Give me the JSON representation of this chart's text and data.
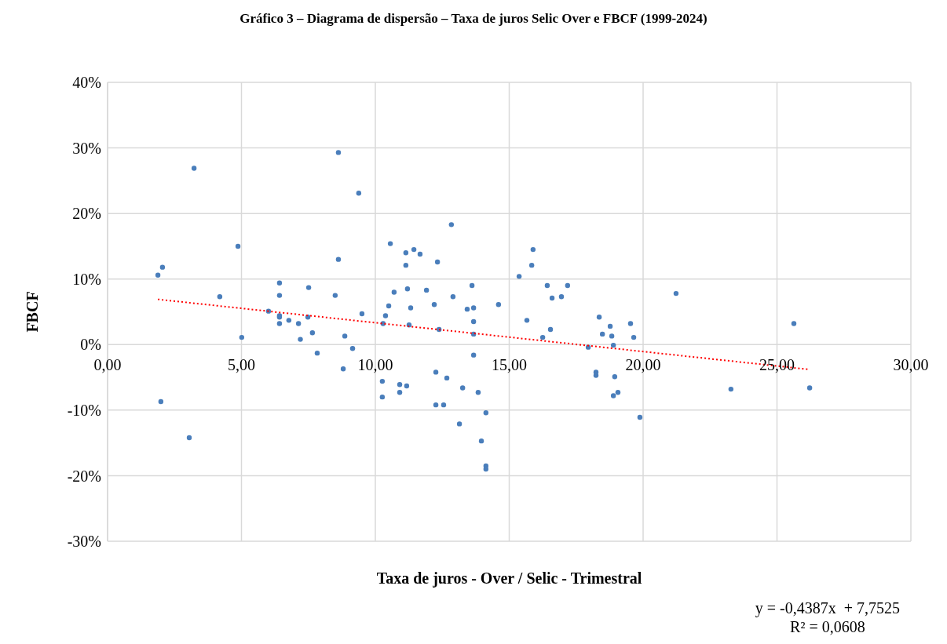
{
  "chart_data": {
    "type": "scatter",
    "title": "Gráfico 3 – Diagrama de dispersão – Taxa de juros Selic Over e FBCF (1999-2024)",
    "xlabel": "Taxa de juros - Over / Selic - Trimestral",
    "ylabel": "FBCF",
    "xlim": [
      0,
      30
    ],
    "xticks": [
      {
        "value": 0,
        "label": "0,00"
      },
      {
        "value": 5,
        "label": "5,00"
      },
      {
        "value": 10,
        "label": "10,00"
      },
      {
        "value": 15,
        "label": "15,00"
      },
      {
        "value": 20,
        "label": "20,00"
      },
      {
        "value": 25,
        "label": "25,00"
      },
      {
        "value": 30,
        "label": "30,00"
      }
    ],
    "ylim": [
      -30,
      40
    ],
    "yticks": [
      {
        "value": -30,
        "label": "-30%"
      },
      {
        "value": -20,
        "label": "-20%"
      },
      {
        "value": -10,
        "label": "-10%"
      },
      {
        "value": 0,
        "label": "0%"
      },
      {
        "value": 10,
        "label": "10%"
      },
      {
        "value": 20,
        "label": "20%"
      },
      {
        "value": 30,
        "label": "30%"
      },
      {
        "value": 40,
        "label": "40%"
      }
    ],
    "grid": true,
    "marker": "circle",
    "annotations": [
      "y = -0,4387x  + 7,7525",
      "R² = 0,0608"
    ],
    "series": [
      {
        "color": "#4a7ebb",
        "x": [
          1.88,
          2.05,
          1.99,
          3.23,
          3.05,
          4.19,
          4.87,
          5.01,
          6.01,
          6.42,
          6.42,
          6.42,
          6.42,
          6.42,
          6.77,
          7.13,
          7.2,
          7.51,
          7.48,
          7.65,
          7.83,
          8.5,
          8.62,
          8.62,
          8.8,
          8.86,
          9.15,
          9.38,
          9.5,
          10.26,
          10.26,
          10.29,
          10.38,
          10.5,
          10.56,
          10.7,
          10.91,
          10.91,
          11.17,
          11.14,
          11.14,
          11.2,
          11.26,
          11.32,
          11.44,
          11.67,
          11.91,
          12.2,
          12.26,
          12.26,
          12.32,
          12.38,
          12.55,
          12.67,
          12.84,
          12.9,
          13.14,
          13.26,
          13.43,
          13.61,
          13.67,
          13.67,
          13.67,
          13.67,
          13.84,
          13.96,
          14.13,
          14.13,
          14.13,
          14.6,
          15.37,
          15.66,
          15.84,
          15.89,
          16.25,
          16.42,
          16.54,
          16.6,
          16.95,
          17.18,
          17.95,
          18.24,
          18.24,
          18.36,
          18.48,
          18.77,
          18.83,
          18.89,
          18.94,
          18.89,
          19.06,
          19.53,
          19.65,
          19.88,
          21.23,
          23.28,
          25.63,
          26.22
        ],
        "values": [
          10.6,
          11.8,
          -8.7,
          26.9,
          -14.2,
          7.3,
          15.0,
          1.1,
          5.1,
          9.4,
          7.5,
          4.4,
          4.2,
          3.2,
          3.7,
          3.2,
          0.8,
          8.7,
          4.2,
          1.8,
          -1.3,
          7.5,
          29.3,
          13.0,
          -3.7,
          1.3,
          -0.6,
          23.1,
          4.7,
          -5.6,
          -8.0,
          3.2,
          4.4,
          5.9,
          15.4,
          8.0,
          -6.1,
          -7.3,
          -6.3,
          14.0,
          12.1,
          8.5,
          3.0,
          5.6,
          14.5,
          13.8,
          8.3,
          6.1,
          -9.2,
          -4.2,
          12.6,
          2.3,
          -9.2,
          -5.1,
          18.3,
          7.3,
          -12.1,
          -6.6,
          5.4,
          9.0,
          5.6,
          3.5,
          1.6,
          -1.6,
          -7.3,
          -14.7,
          -10.4,
          -18.5,
          -19.0,
          6.1,
          10.4,
          3.7,
          12.1,
          14.5,
          1.1,
          9.0,
          2.3,
          7.1,
          7.3,
          9.0,
          -0.4,
          -4.2,
          -4.7,
          4.2,
          1.6,
          2.8,
          1.3,
          -0.1,
          -4.9,
          -7.8,
          -7.3,
          3.2,
          1.1,
          -11.1,
          7.8,
          -6.8,
          3.2,
          -6.6
        ]
      },
      {
        "type": "line",
        "color": "#ff0000",
        "line_style": "dotted",
        "marker": "none",
        "x": [
          1.88,
          26.22
        ],
        "values": [
          6.9,
          -3.8
        ]
      }
    ]
  }
}
